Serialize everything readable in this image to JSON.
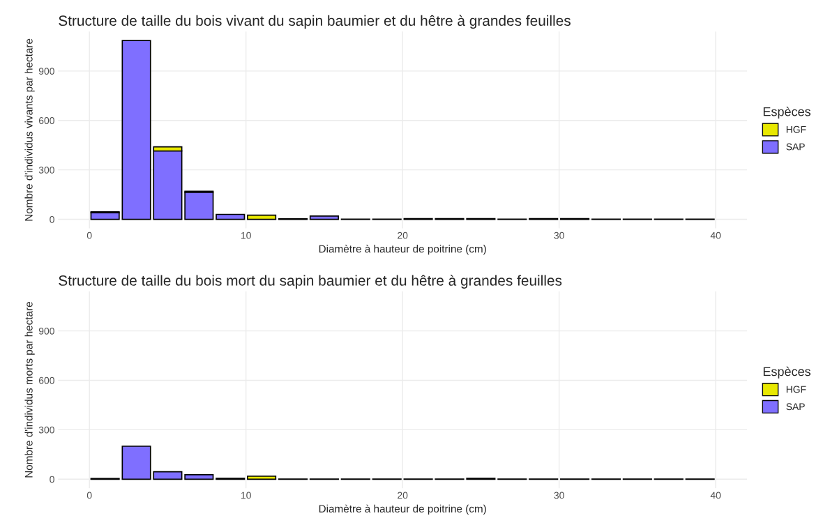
{
  "chart_data": [
    {
      "type": "bar",
      "title": "Structure de taille du bois vivant du sapin baumier et du hêtre à grandes feuilles",
      "xlabel": "Diamètre à hauteur de poitrine (cm)",
      "ylabel": "Nombre d'individus vivants par hectare",
      "legend_title": "Espèces",
      "stacked": true,
      "legend": "right",
      "grid": true,
      "x": [
        1,
        3,
        5,
        7,
        9,
        11,
        13,
        15,
        17,
        19,
        21,
        23,
        25,
        27,
        29,
        31,
        33,
        35,
        37,
        39
      ],
      "series": [
        {
          "name": "SAP",
          "color": "#7f6fff",
          "values": [
            40,
            1085,
            415,
            165,
            30,
            null,
            null,
            20,
            1,
            1,
            4,
            4,
            4,
            1,
            4,
            4,
            1,
            1,
            1,
            1
          ]
        },
        {
          "name": "HGF",
          "color": "#e8e800",
          "values": [
            5,
            null,
            25,
            5,
            null,
            25,
            3,
            null,
            null,
            null,
            null,
            null,
            null,
            null,
            null,
            null,
            null,
            null,
            null,
            null
          ]
        }
      ],
      "xlim": [
        -2,
        42
      ],
      "xticks": [
        0,
        10,
        20,
        30,
        40
      ],
      "ylim": [
        -55,
        1140
      ],
      "yticks": [
        0,
        300,
        600,
        900
      ]
    },
    {
      "type": "bar",
      "title": "Structure de taille du bois mort du sapin baumier et du hêtre à grandes feuilles",
      "xlabel": "Diamètre à hauteur de poitrine (cm)",
      "ylabel": "Nombre d'individus morts par hectare",
      "legend_title": "Espèces",
      "stacked": true,
      "legend": "right",
      "grid": true,
      "x": [
        1,
        3,
        5,
        7,
        9,
        11,
        13,
        15,
        17,
        19,
        21,
        23,
        25,
        27,
        29,
        31,
        33,
        35,
        37,
        39
      ],
      "series": [
        {
          "name": "SAP",
          "color": "#7f6fff",
          "values": [
            4,
            200,
            45,
            27,
            5,
            null,
            1,
            1,
            1,
            1,
            1,
            1,
            5,
            1,
            1,
            1,
            1,
            1,
            1,
            1
          ]
        },
        {
          "name": "HGF",
          "color": "#e8e800",
          "values": [
            null,
            null,
            null,
            null,
            null,
            18,
            null,
            null,
            null,
            null,
            null,
            null,
            null,
            null,
            null,
            null,
            null,
            null,
            null,
            null
          ]
        }
      ],
      "xlim": [
        -2,
        42
      ],
      "xticks": [
        0,
        10,
        20,
        30,
        40
      ],
      "ylim": [
        -55,
        1140
      ],
      "yticks": [
        0,
        300,
        600,
        900
      ]
    }
  ]
}
